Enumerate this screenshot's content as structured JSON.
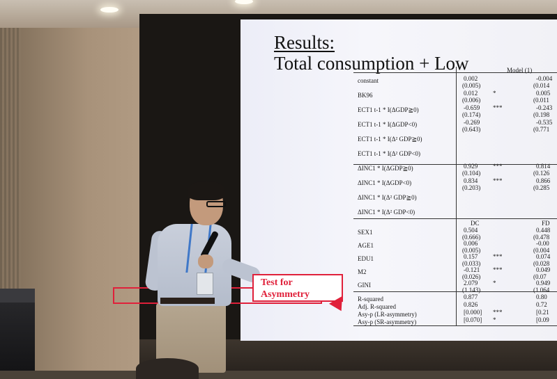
{
  "slide": {
    "title_line1": "Results:",
    "title_line2": "Total consumption + Low",
    "model_header": "Model (1)",
    "rows": [
      {
        "label": "constant",
        "c1": "0.002",
        "c1_se": "(0.005)",
        "c2": "-0.004",
        "c2_se": "(0.014"
      },
      {
        "label": "BK96",
        "c1": "0.012",
        "c1_se": "(0.006)",
        "stars": "*",
        "c2": "0.005",
        "c2_se": "(0.011"
      },
      {
        "label": "ECT1 t-1 * I(ΔGDP≧0)",
        "c1": "-0.659",
        "c1_se": "(0.174)",
        "stars": "***",
        "c2": "-0.243",
        "c2_se": "(0.198"
      },
      {
        "label": "ECT1 t-1 * I(ΔGDP<0)",
        "c1": "-0.269",
        "c1_se": "(0.643)",
        "c2": "-0.535",
        "c2_se": "(0.771"
      },
      {
        "label": "ECT1 t-1 * I(Δ² GDP≧0)"
      },
      {
        "label": "ECT1 t-1 * I(Δ² GDP<0)"
      },
      {
        "label": "ΔINC1 * I(ΔGDP≧0)",
        "c1": "0.929",
        "c1_se": "(0.104)",
        "stars": "***",
        "c2": "0.814",
        "c2_se": "(0.126"
      },
      {
        "label": "ΔINC1 * I(ΔGDP<0)",
        "c1": "0.834",
        "c1_se": "(0.203)",
        "stars": "***",
        "c2": "0.866",
        "c2_se": "(0.285"
      },
      {
        "label": "ΔINC1 * I(Δ² GDP≧0)"
      },
      {
        "label": "ΔINC1 * I(Δ² GDP<0)"
      }
    ],
    "subhead_c1": "DC",
    "subhead_c2": "FD",
    "controls": [
      {
        "label": "SEX1",
        "c1": "0.504",
        "c1_se": "(0.666)",
        "c2": "0.448",
        "c2_se": "(0.478"
      },
      {
        "label": "AGE1",
        "c1": "0.006",
        "c1_se": "(0.005)",
        "c2": "-0.00",
        "c2_se": "(0.004"
      },
      {
        "label": "EDU1",
        "c1": "0.157",
        "c1_se": "(0.033)",
        "stars": "***",
        "c2": "0.074",
        "c2_se": "(0.028"
      },
      {
        "label": "M2",
        "c1": "-0.121",
        "c1_se": "(0.026)",
        "stars": "***",
        "c2": "0.049",
        "c2_se": "(0.07"
      },
      {
        "label": "GINI",
        "c1": "2.079",
        "c1_se": "(1.143)",
        "stars": "*",
        "c2": "0.949",
        "c2_se": "(1.064"
      }
    ],
    "stats": [
      {
        "label": "R-squared",
        "c1": "0.877",
        "c2": "0.80"
      },
      {
        "label": "Adj. R-squared",
        "c1": "0.826",
        "c2": "0.72"
      },
      {
        "label": "Asy-p (LR-asymmetry)",
        "c1": "[0.000]",
        "stars": "***",
        "c2": "[0.21"
      },
      {
        "label": "Asy-p (SR-asymmetry)",
        "c1": "[0.070]",
        "stars": "*",
        "c2": "[0.09"
      }
    ],
    "callout_line1": "Test for",
    "callout_line2": "Asymmetry"
  },
  "colors": {
    "highlight": "#e0203a",
    "slide_bg": "#f3f3f8"
  }
}
